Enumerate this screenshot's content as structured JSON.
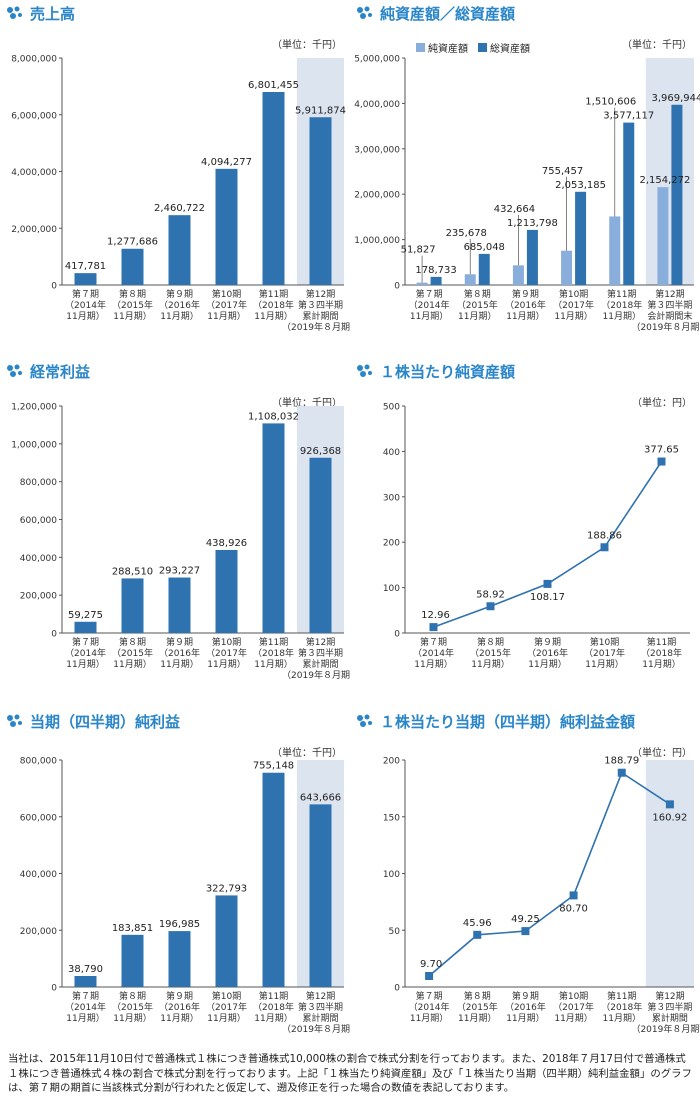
{
  "colors": {
    "title": "#2a86c8",
    "bar": "#2f72b0",
    "bar_light": "#8aaedb",
    "highlight": "#dce4f0",
    "line": "#2f72b0"
  },
  "icon": "snowflake-cluster-icon",
  "chart_data": [
    {
      "type": "bar",
      "title": "売上高",
      "unit": "（単位：千円）",
      "categories": [
        [
          "第７期",
          "（2014年",
          "11月期）"
        ],
        [
          "第８期",
          "（2015年",
          "11月期）"
        ],
        [
          "第９期",
          "（2016年",
          "11月期）"
        ],
        [
          "第10期",
          "（2017年",
          "11月期）"
        ],
        [
          "第11期",
          "（2018年",
          "11月期）"
        ],
        [
          "第12期",
          "第３四半期",
          "累計期間",
          "（2019年８月期）"
        ]
      ],
      "values": [
        417781,
        1277686,
        2460722,
        4094277,
        6801455,
        5911874
      ],
      "labels": [
        "417,781",
        "1,277,686",
        "2,460,722",
        "4,094,277",
        "6,801,455",
        "5,911,874"
      ],
      "ylim": [
        0,
        8000000
      ],
      "yticks": [
        "0",
        "2,000,000",
        "4,000,000",
        "6,000,000",
        "8,000,000"
      ],
      "highlight_last": true
    },
    {
      "type": "bar",
      "title": "純資産額／総資産額",
      "unit": "（単位：千円）",
      "legend": [
        "純資産額",
        "総資産額"
      ],
      "categories": [
        [
          "第７期",
          "（2014年",
          "11月期）"
        ],
        [
          "第８期",
          "（2015年",
          "11月期）"
        ],
        [
          "第９期",
          "（2016年",
          "11月期）"
        ],
        [
          "第10期",
          "（2017年",
          "11月期）"
        ],
        [
          "第11期",
          "（2018年",
          "11月期）"
        ],
        [
          "第12期",
          "第３四半期",
          "会計期間末",
          "（2019年８月期）"
        ]
      ],
      "series": [
        {
          "name": "純資産額",
          "values": [
            51827,
            235678,
            432664,
            755457,
            1510606,
            2154272
          ],
          "labels": [
            "51,827",
            "235,678",
            "432,664",
            "755,457",
            "1,510,606",
            "2,154,272"
          ]
        },
        {
          "name": "総資産額",
          "values": [
            178733,
            685048,
            1213798,
            2053185,
            3577117,
            3969944
          ],
          "labels": [
            "178,733",
            "685,048",
            "1,213,798",
            "2,053,185",
            "3,577,117",
            "3,969,944"
          ]
        }
      ],
      "ylim": [
        0,
        5000000
      ],
      "yticks": [
        "0",
        "1,000,000",
        "2,000,000",
        "3,000,000",
        "4,000,000",
        "5,000,000"
      ],
      "highlight_last": true
    },
    {
      "type": "bar",
      "title": "経常利益",
      "unit": "（単位：千円）",
      "categories": [
        [
          "第７期",
          "（2014年",
          "11月期）"
        ],
        [
          "第８期",
          "（2015年",
          "11月期）"
        ],
        [
          "第９期",
          "（2016年",
          "11月期）"
        ],
        [
          "第10期",
          "（2017年",
          "11月期）"
        ],
        [
          "第11期",
          "（2018年",
          "11月期）"
        ],
        [
          "第12期",
          "第３四半期",
          "累計期間",
          "（2019年８月期）"
        ]
      ],
      "values": [
        59275,
        288510,
        293227,
        438926,
        1108032,
        926368
      ],
      "labels": [
        "59,275",
        "288,510",
        "293,227",
        "438,926",
        "1,108,032",
        "926,368"
      ],
      "ylim": [
        0,
        1200000
      ],
      "yticks": [
        "0",
        "200,000",
        "400,000",
        "600,000",
        "800,000",
        "1,000,000",
        "1,200,000"
      ],
      "highlight_last": true
    },
    {
      "type": "line",
      "title": "１株当たり純資産額",
      "unit": "（単位：円）",
      "categories": [
        [
          "第７期",
          "（2014年",
          "11月期）"
        ],
        [
          "第８期",
          "（2015年",
          "11月期）"
        ],
        [
          "第９期",
          "（2016年",
          "11月期）"
        ],
        [
          "第10期",
          "（2017年",
          "11月期）"
        ],
        [
          "第11期",
          "（2018年",
          "11月期）"
        ]
      ],
      "values": [
        12.96,
        58.92,
        108.17,
        188.86,
        377.65
      ],
      "labels": [
        "12.96",
        "58.92",
        "108.17",
        "188.86",
        "377.65"
      ],
      "ylim": [
        0,
        500
      ],
      "yticks": [
        "0",
        "100",
        "200",
        "300",
        "400",
        "500"
      ],
      "highlight_last": false
    },
    {
      "type": "bar",
      "title": "当期（四半期）純利益",
      "unit": "（単位：千円）",
      "categories": [
        [
          "第７期",
          "（2014年",
          "11月期）"
        ],
        [
          "第８期",
          "（2015年",
          "11月期）"
        ],
        [
          "第９期",
          "（2016年",
          "11月期）"
        ],
        [
          "第10期",
          "（2017年",
          "11月期）"
        ],
        [
          "第11期",
          "（2018年",
          "11月期）"
        ],
        [
          "第12期",
          "第３四半期",
          "累計期間",
          "（2019年８月期）"
        ]
      ],
      "values": [
        38790,
        183851,
        196985,
        322793,
        755148,
        643666
      ],
      "labels": [
        "38,790",
        "183,851",
        "196,985",
        "322,793",
        "755,148",
        "643,666"
      ],
      "ylim": [
        0,
        800000
      ],
      "yticks": [
        "0",
        "200,000",
        "400,000",
        "600,000",
        "800,000"
      ],
      "highlight_last": true
    },
    {
      "type": "line",
      "title": "１株当たり当期（四半期）純利益金額",
      "unit": "（単位：円）",
      "categories": [
        [
          "第７期",
          "（2014年",
          "11月期）"
        ],
        [
          "第８期",
          "（2015年",
          "11月期）"
        ],
        [
          "第９期",
          "（2016年",
          "11月期）"
        ],
        [
          "第10期",
          "（2017年",
          "11月期）"
        ],
        [
          "第11期",
          "（2018年",
          "11月期）"
        ],
        [
          "第12期",
          "第３四半期",
          "累計期間",
          "（2019年８月期）"
        ]
      ],
      "values": [
        9.7,
        45.96,
        49.25,
        80.7,
        188.79,
        160.92
      ],
      "labels": [
        "9.70",
        "45.96",
        "49.25",
        "80.70",
        "188.79",
        "160.92"
      ],
      "ylim": [
        0,
        200
      ],
      "yticks": [
        "0",
        "50",
        "100",
        "150",
        "200"
      ],
      "highlight_last": true
    }
  ],
  "footnote": "当社は、2015年11月10日付で普通株式１株につき普通株式10,000株の割合で株式分割を行っております。また、2018年７月17日付で普通株式１株につき普通株式４株の割合で株式分割を行っております。上記「１株当たり純資産額」及び「１株当たり当期（四半期）純利益金額」のグラフは、第７期の期首に当該株式分割が行われたと仮定して、遡及修正を行った場合の数値を表記しております。"
}
